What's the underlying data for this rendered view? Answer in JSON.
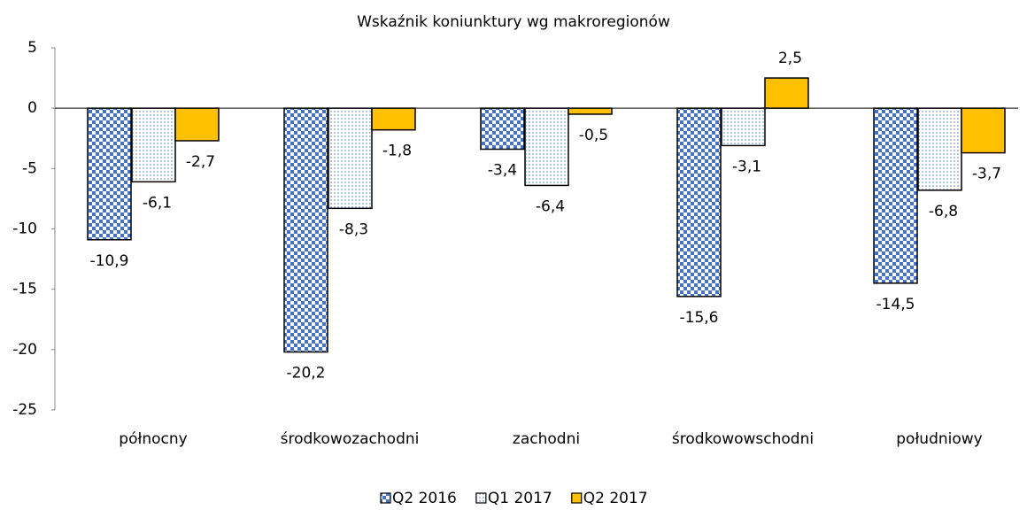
{
  "chart_data": {
    "type": "bar",
    "title": "Wskaźnik koniunktury wg makroregionów",
    "categories": [
      "północny",
      "środkowozachodni",
      "zachodni",
      "środkowowschodni",
      "południowy"
    ],
    "series": [
      {
        "name": "Q2 2016",
        "color": "#4472c4",
        "pattern": "checker",
        "values": [
          -10.9,
          -20.2,
          -3.4,
          -15.6,
          -14.5
        ],
        "value_labels": [
          "-10,9",
          "-20,2",
          "-3,4",
          "-15,6",
          "-14,5"
        ]
      },
      {
        "name": "Q1 2017",
        "color": "#4472c4",
        "pattern": "dots",
        "values": [
          -6.1,
          -8.3,
          -6.4,
          -3.1,
          -6.8
        ],
        "value_labels": [
          "-6,1",
          "-8,3",
          "-6,4",
          "-3,1",
          "-6,8"
        ]
      },
      {
        "name": "Q2 2017",
        "color": "#ffc000",
        "pattern": "solid",
        "values": [
          -2.7,
          -1.8,
          -0.5,
          2.5,
          -3.7
        ],
        "value_labels": [
          "-2,7",
          "-1,8",
          "-0,5",
          "2,5",
          "-3,7"
        ]
      }
    ],
    "ylim": [
      -25,
      5
    ],
    "yticks": [
      5,
      0,
      -5,
      -10,
      -15,
      -20,
      -25
    ],
    "legend": "bottom"
  }
}
